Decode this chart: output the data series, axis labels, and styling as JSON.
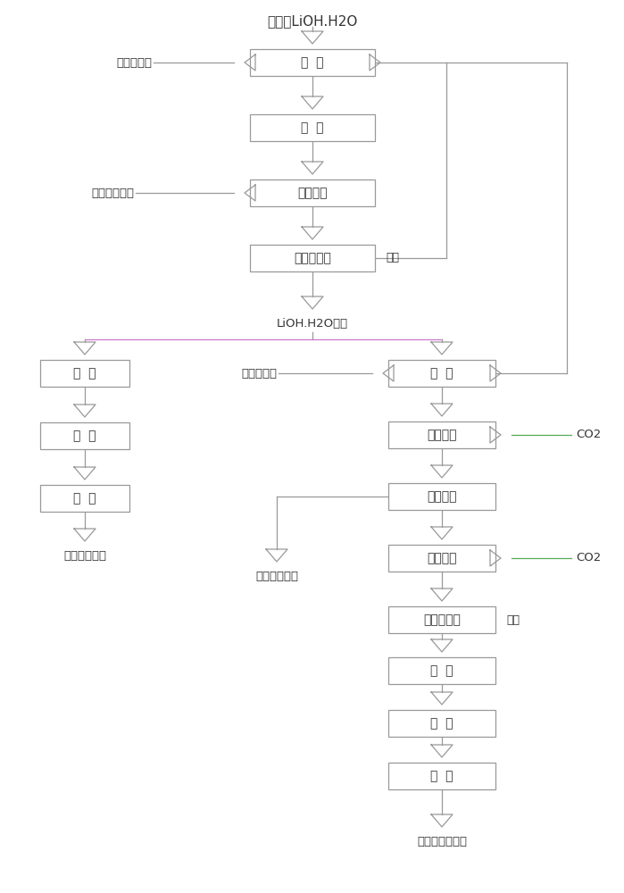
{
  "line_color": "#999999",
  "box_edge_color": "#999999",
  "text_color": "#333333",
  "pink_color": "#cc77cc",
  "green_color": "#55aa55",
  "title": "工业级LiOH.H2O",
  "lioh_label": "LiOH.H2O湿料",
  "top_boxes": [
    "溶  解",
    "过  滤",
    "冷却结晶",
    "离心、洗涤"
  ],
  "left_boxes": [
    "烘  干",
    "筛  分",
    "包  装"
  ],
  "right_boxes": [
    "溶  解",
    "一次碳化",
    "固液分离",
    "二次碳化",
    "离心、洗涤",
    "烘  干",
    "筛  分",
    "包  装"
  ],
  "label_diyi": "第一除杂剂",
  "label_qingyang": "氢氧化锂晶体",
  "label_muye1": "母液",
  "label_lioh": "LiOH.H2O湿料",
  "label_dier": "第二除杂剂",
  "label_co2": "CO2",
  "label_muye2": "母液",
  "label_dianchi": "电池级碳酸锂",
  "label_gaochun_li": "高纯氢氧化锂",
  "label_gaochun_li2": "高纯碳酸锂产品",
  "figsize": [
    6.99,
    10.0
  ],
  "dpi": 100
}
